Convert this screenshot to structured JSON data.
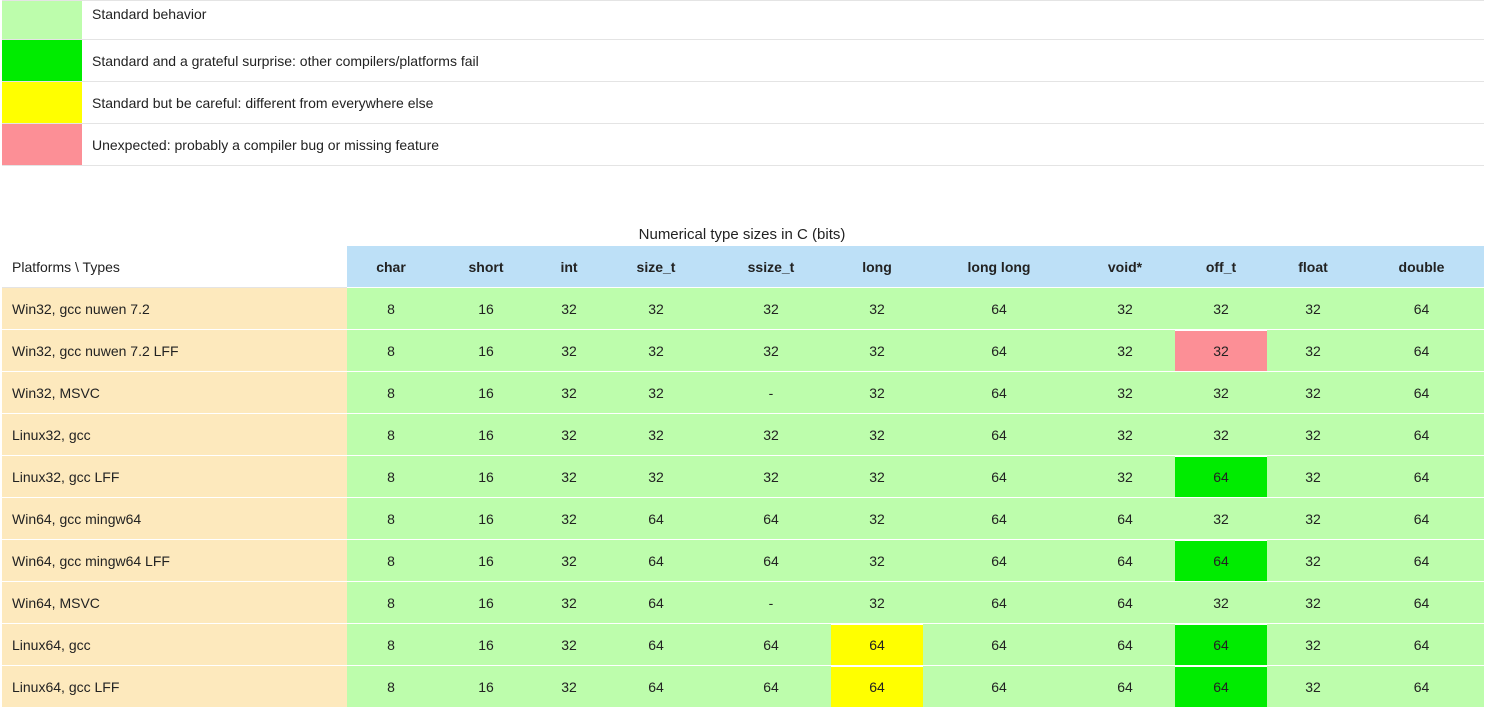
{
  "legend": {
    "items": [
      {
        "color": "#bdfdac",
        "text": "Standard behavior"
      },
      {
        "color": "#00ec00",
        "text": "Standard and a grateful surprise: other compilers/platforms fail"
      },
      {
        "color": "#ffff00",
        "text": "Standard but be careful: different from everywhere else"
      },
      {
        "color": "#fc8f96",
        "text": "Unexpected: probably a compiler bug or missing feature"
      }
    ]
  },
  "table": {
    "caption": "Numerical type sizes in C (bits)",
    "corner": "Platforms \\ Types",
    "columns": [
      "char",
      "short",
      "int",
      "size_t",
      "ssize_t",
      "long",
      "long long",
      "void*",
      "off_t",
      "float",
      "double"
    ],
    "rows": [
      {
        "platform": "Win32, gcc nuwen 7.2",
        "values": [
          "8",
          "16",
          "32",
          "32",
          "32",
          "32",
          "64",
          "32",
          "32",
          "32",
          "64"
        ],
        "status": [
          "",
          "",
          "",
          "",
          "",
          "",
          "",
          "",
          "",
          "",
          ""
        ]
      },
      {
        "platform": "Win32, gcc nuwen 7.2 LFF",
        "values": [
          "8",
          "16",
          "32",
          "32",
          "32",
          "32",
          "64",
          "32",
          "32",
          "32",
          "64"
        ],
        "status": [
          "",
          "",
          "",
          "",
          "",
          "",
          "",
          "",
          "bug",
          "",
          ""
        ]
      },
      {
        "platform": "Win32, MSVC",
        "values": [
          "8",
          "16",
          "32",
          "32",
          "-",
          "32",
          "64",
          "32",
          "32",
          "32",
          "64"
        ],
        "status": [
          "",
          "",
          "",
          "",
          "",
          "",
          "",
          "",
          "",
          "",
          ""
        ]
      },
      {
        "platform": "Linux32, gcc",
        "values": [
          "8",
          "16",
          "32",
          "32",
          "32",
          "32",
          "64",
          "32",
          "32",
          "32",
          "64"
        ],
        "status": [
          "",
          "",
          "",
          "",
          "",
          "",
          "",
          "",
          "",
          "",
          ""
        ]
      },
      {
        "platform": "Linux32, gcc LFF",
        "values": [
          "8",
          "16",
          "32",
          "32",
          "32",
          "32",
          "64",
          "32",
          "64",
          "32",
          "64"
        ],
        "status": [
          "",
          "",
          "",
          "",
          "",
          "",
          "",
          "",
          "surprise",
          "",
          ""
        ]
      },
      {
        "platform": "Win64, gcc mingw64",
        "values": [
          "8",
          "16",
          "32",
          "64",
          "64",
          "32",
          "64",
          "64",
          "32",
          "32",
          "64"
        ],
        "status": [
          "",
          "",
          "",
          "",
          "",
          "",
          "",
          "",
          "",
          "",
          ""
        ]
      },
      {
        "platform": "Win64, gcc mingw64 LFF",
        "values": [
          "8",
          "16",
          "32",
          "64",
          "64",
          "32",
          "64",
          "64",
          "64",
          "32",
          "64"
        ],
        "status": [
          "",
          "",
          "",
          "",
          "",
          "",
          "",
          "",
          "surprise",
          "",
          ""
        ]
      },
      {
        "platform": "Win64, MSVC",
        "values": [
          "8",
          "16",
          "32",
          "64",
          "-",
          "32",
          "64",
          "64",
          "32",
          "32",
          "64"
        ],
        "status": [
          "",
          "",
          "",
          "",
          "",
          "",
          "",
          "",
          "",
          "",
          ""
        ]
      },
      {
        "platform": "Linux64, gcc",
        "values": [
          "8",
          "16",
          "32",
          "64",
          "64",
          "64",
          "64",
          "64",
          "64",
          "32",
          "64"
        ],
        "status": [
          "",
          "",
          "",
          "",
          "",
          "careful",
          "",
          "",
          "surprise",
          "",
          ""
        ]
      },
      {
        "platform": "Linux64, gcc LFF",
        "values": [
          "8",
          "16",
          "32",
          "64",
          "64",
          "64",
          "64",
          "64",
          "64",
          "32",
          "64"
        ],
        "status": [
          "",
          "",
          "",
          "",
          "",
          "careful",
          "",
          "",
          "surprise",
          "",
          ""
        ]
      }
    ]
  }
}
